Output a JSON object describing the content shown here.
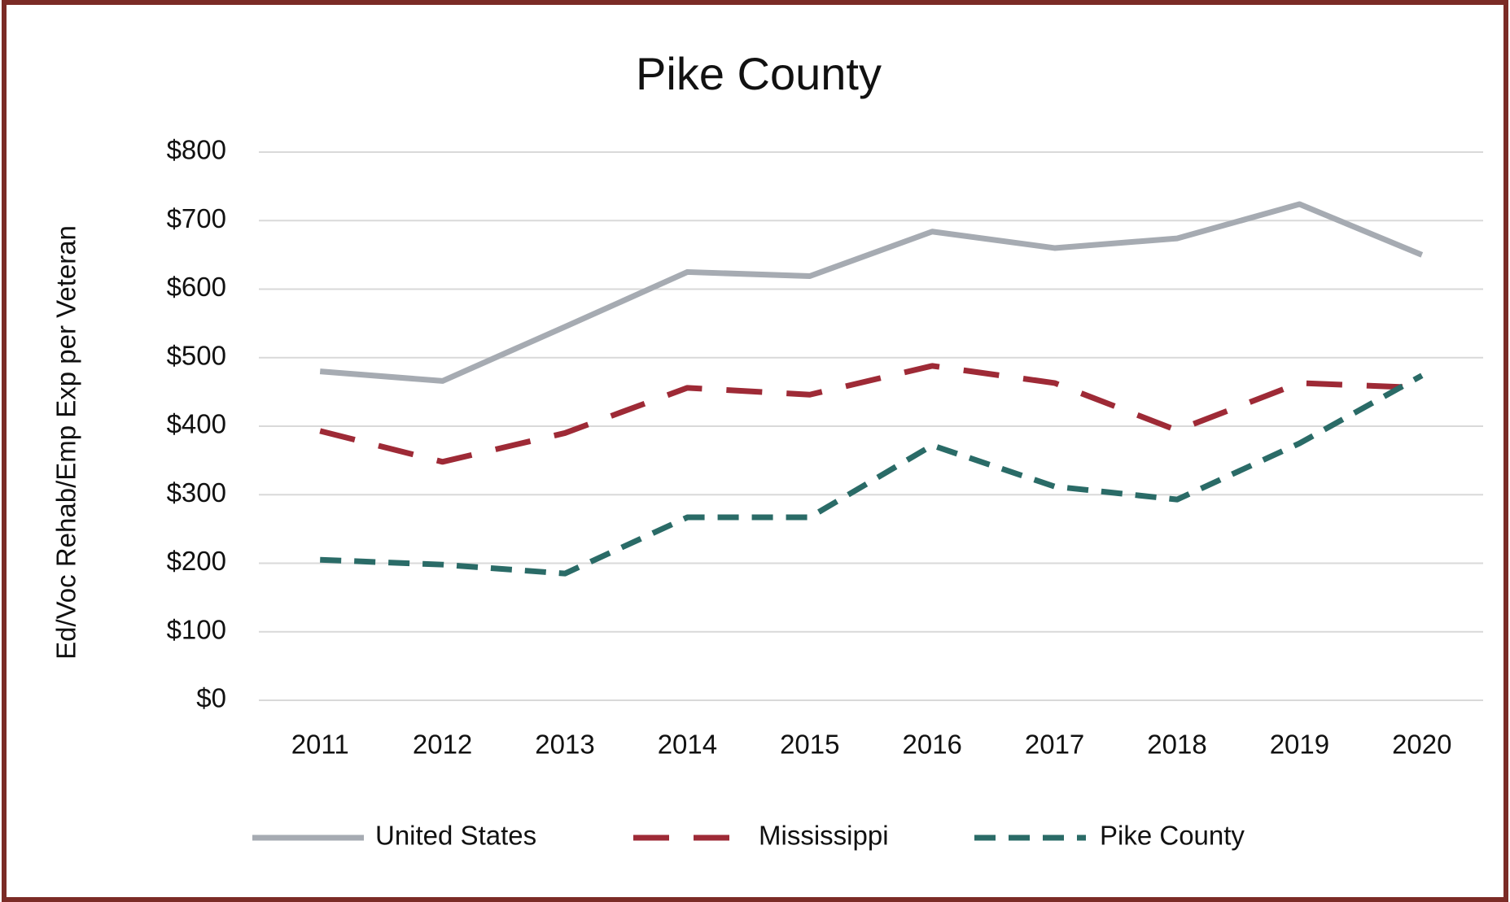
{
  "chart_data": {
    "type": "line",
    "title": "Pike County",
    "y_label": "Ed/Voc Rehab/Emp Exp per Veteran",
    "categories": [
      "2011",
      "2012",
      "2013",
      "2014",
      "2015",
      "2016",
      "2017",
      "2018",
      "2019",
      "2020"
    ],
    "series": [
      {
        "name": "United States",
        "color": "#a6abb2",
        "dash": "solid",
        "values": [
          480,
          466,
          545,
          625,
          619,
          684,
          660,
          674,
          724,
          650
        ]
      },
      {
        "name": "Mississippi",
        "color": "#9e2a36",
        "dash": "long",
        "values": [
          393,
          348,
          390,
          456,
          446,
          488,
          463,
          394,
          463,
          456
        ]
      },
      {
        "name": "Pike County",
        "color": "#2a6b67",
        "dash": "short",
        "values": [
          205,
          198,
          185,
          267,
          267,
          372,
          312,
          293,
          375,
          474
        ]
      }
    ],
    "ylim": [
      0,
      800
    ],
    "yticks": [
      {
        "value": 0,
        "label": "$0"
      },
      {
        "value": 100,
        "label": "$100"
      },
      {
        "value": 200,
        "label": "$200"
      },
      {
        "value": 300,
        "label": "$300"
      },
      {
        "value": 400,
        "label": "$400"
      },
      {
        "value": 500,
        "label": "$500"
      },
      {
        "value": 600,
        "label": "$600"
      },
      {
        "value": 700,
        "label": "$700"
      },
      {
        "value": 800,
        "label": "$800"
      }
    ],
    "grid": true,
    "legend": "bottom"
  }
}
